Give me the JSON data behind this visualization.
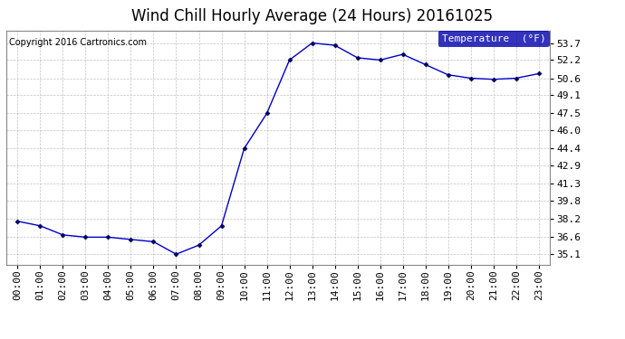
{
  "title": "Wind Chill Hourly Average (24 Hours) 20161025",
  "copyright": "Copyright 2016 Cartronics.com",
  "legend_label": "Temperature  (°F)",
  "hours": [
    "00:00",
    "01:00",
    "02:00",
    "03:00",
    "04:00",
    "05:00",
    "06:00",
    "07:00",
    "08:00",
    "09:00",
    "10:00",
    "11:00",
    "12:00",
    "13:00",
    "14:00",
    "15:00",
    "16:00",
    "17:00",
    "18:00",
    "19:00",
    "20:00",
    "21:00",
    "22:00",
    "23:00"
  ],
  "values": [
    38.0,
    37.6,
    36.8,
    36.6,
    36.6,
    36.4,
    36.2,
    35.1,
    35.9,
    37.6,
    44.4,
    47.5,
    52.2,
    53.7,
    53.5,
    52.4,
    52.2,
    52.7,
    51.8,
    50.9,
    50.6,
    50.5,
    50.6,
    51.0
  ],
  "yticks": [
    35.1,
    36.6,
    38.2,
    39.8,
    41.3,
    42.9,
    44.4,
    46.0,
    47.5,
    49.1,
    50.6,
    52.2,
    53.7
  ],
  "ylim": [
    34.2,
    54.8
  ],
  "xlim": [
    -0.5,
    23.5
  ],
  "line_color": "#0000cc",
  "marker_color": "#000060",
  "bg_color": "#ffffff",
  "plot_bg_color": "#ffffff",
  "grid_color": "#bbbbbb",
  "title_fontsize": 12,
  "copyright_fontsize": 7,
  "tick_fontsize": 8,
  "legend_bg": "#0000aa",
  "legend_fg": "#ffffff",
  "border_color": "#888888"
}
